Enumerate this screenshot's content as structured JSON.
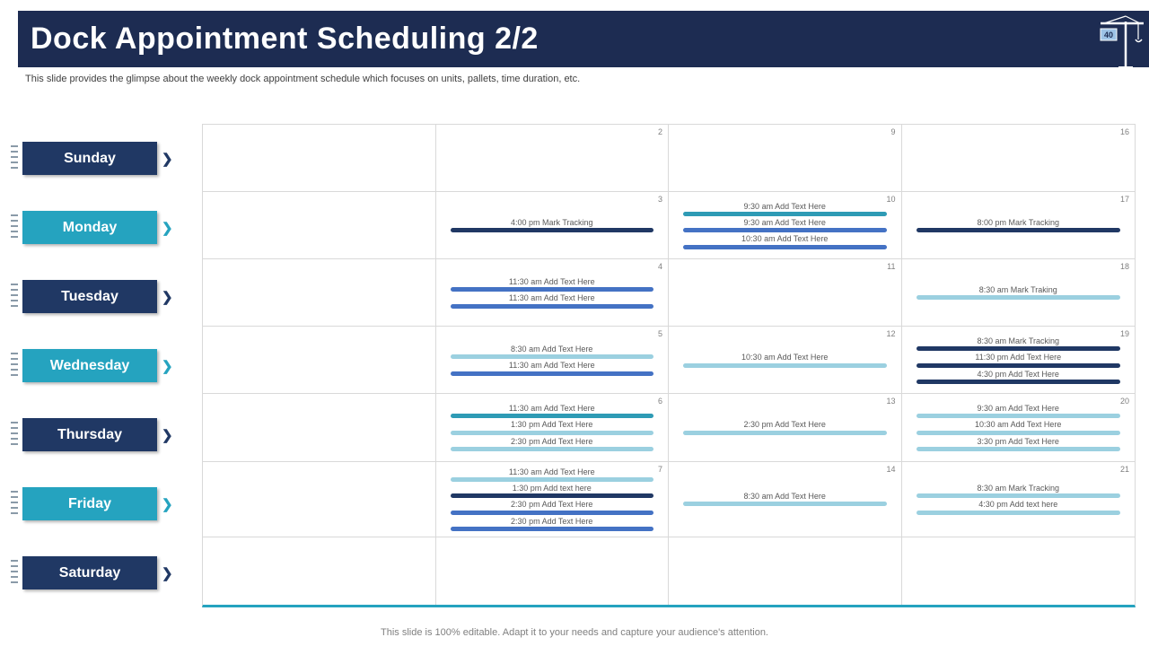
{
  "header": {
    "title": "Dock Appointment Scheduling 2/2",
    "icon_label": "40"
  },
  "subtitle": "This slide provides the glimpse about the weekly dock appointment schedule which focuses on units, pallets, time duration, etc.",
  "footer": "This slide is 100% editable. Adapt it to your needs and capture your audience's attention.",
  "icons": {
    "chevron": "❯",
    "crane": "crane-icon"
  },
  "colors": {
    "header_bg": "#1d2c52",
    "navy": "#203864",
    "accent_teal": "#25a3bf",
    "teal": "#2e9bb5",
    "blue": "#4472c4",
    "light": "#9bd0e0",
    "grid_border": "#d9d9d9",
    "text_gray": "#595959"
  },
  "days": [
    {
      "label": "Sunday",
      "color": "navy"
    },
    {
      "label": "Monday",
      "color": "accent_teal"
    },
    {
      "label": "Tuesday",
      "color": "navy"
    },
    {
      "label": "Wednesday",
      "color": "accent_teal"
    },
    {
      "label": "Thursday",
      "color": "navy"
    },
    {
      "label": "Friday",
      "color": "accent_teal"
    },
    {
      "label": "Saturday",
      "color": "navy"
    }
  ],
  "calendar": {
    "rows": [
      {
        "day": "Sunday",
        "cells": [
          {
            "number": "",
            "events": []
          },
          {
            "number": "2",
            "events": []
          },
          {
            "number": "9",
            "events": []
          },
          {
            "number": "16",
            "events": []
          }
        ]
      },
      {
        "day": "Monday",
        "cells": [
          {
            "number": "",
            "events": []
          },
          {
            "number": "3",
            "events": [
              {
                "time": "4:00 pm",
                "label": "Mark Tracking",
                "color": "navy"
              }
            ]
          },
          {
            "number": "10",
            "events": [
              {
                "time": "9:30 am",
                "label": "Add Text Here",
                "color": "teal"
              },
              {
                "time": "9:30 am",
                "label": "Add Text Here",
                "color": "blue"
              },
              {
                "time": "10:30 am",
                "label": "Add Text Here",
                "color": "blue"
              }
            ]
          },
          {
            "number": "17",
            "events": [
              {
                "time": "8:00 pm",
                "label": "Mark Tracking",
                "color": "navy"
              }
            ]
          }
        ]
      },
      {
        "day": "Tuesday",
        "cells": [
          {
            "number": "",
            "events": []
          },
          {
            "number": "4",
            "events": [
              {
                "time": "11:30 am",
                "label": "Add Text Here",
                "color": "blue"
              },
              {
                "time": "11:30 am",
                "label": "Add Text Here",
                "color": "blue"
              }
            ]
          },
          {
            "number": "11",
            "events": []
          },
          {
            "number": "18",
            "events": [
              {
                "time": "8:30 am",
                "label": "Mark Traking",
                "color": "light"
              }
            ]
          }
        ]
      },
      {
        "day": "Wednesday",
        "cells": [
          {
            "number": "",
            "events": []
          },
          {
            "number": "5",
            "events": [
              {
                "time": "8:30 am",
                "label": "Add Text Here",
                "color": "light"
              },
              {
                "time": "11:30 am",
                "label": "Add Text Here",
                "color": "blue"
              }
            ]
          },
          {
            "number": "12",
            "events": [
              {
                "time": "10:30 am",
                "label": "Add Text Here",
                "color": "light"
              }
            ]
          },
          {
            "number": "19",
            "events": [
              {
                "time": "8:30 am",
                "label": "Mark Tracking",
                "color": "navy"
              },
              {
                "time": "11:30 pm",
                "label": "Add Text Here",
                "color": "navy"
              },
              {
                "time": "4:30 pm",
                "label": "Add Text Here",
                "color": "navy"
              }
            ]
          }
        ]
      },
      {
        "day": "Thursday",
        "cells": [
          {
            "number": "",
            "events": []
          },
          {
            "number": "6",
            "events": [
              {
                "time": "11:30 am",
                "label": "Add Text Here",
                "color": "teal"
              },
              {
                "time": "1:30 pm",
                "label": "Add Text Here",
                "color": "light"
              },
              {
                "time": "2:30 pm",
                "label": "Add Text Here",
                "color": "light"
              }
            ]
          },
          {
            "number": "13",
            "events": [
              {
                "time": "2:30 pm",
                "label": "Add Text Here",
                "color": "light"
              }
            ]
          },
          {
            "number": "20",
            "events": [
              {
                "time": "9:30 am",
                "label": "Add Text Here",
                "color": "light"
              },
              {
                "time": "10:30 am",
                "label": "Add Text Here",
                "color": "light"
              },
              {
                "time": "3:30 pm",
                "label": "Add Text Here",
                "color": "light"
              }
            ]
          }
        ]
      },
      {
        "day": "Friday",
        "cells": [
          {
            "number": "",
            "events": []
          },
          {
            "number": "7",
            "events": [
              {
                "time": "11:30 am",
                "label": "Add Text Here",
                "color": "light"
              },
              {
                "time": "1:30 pm",
                "label": "Add text here",
                "color": "navy"
              },
              {
                "time": "2:30 pm",
                "label": "Add Text Here",
                "color": "blue"
              },
              {
                "time": "2:30 pm",
                "label": "Add Text Here",
                "color": "blue"
              }
            ]
          },
          {
            "number": "14",
            "events": [
              {
                "time": "8:30 am",
                "label": "Add Text Here",
                "color": "light"
              }
            ]
          },
          {
            "number": "21",
            "events": [
              {
                "time": "8:30 am",
                "label": "Mark Tracking",
                "color": "light"
              },
              {
                "time": "4:30 pm",
                "label": "Add text here",
                "color": "light"
              }
            ]
          }
        ]
      },
      {
        "day": "Saturday",
        "cells": [
          {
            "number": "",
            "events": []
          },
          {
            "number": "",
            "events": []
          },
          {
            "number": "",
            "events": []
          },
          {
            "number": "",
            "events": []
          }
        ]
      }
    ]
  }
}
